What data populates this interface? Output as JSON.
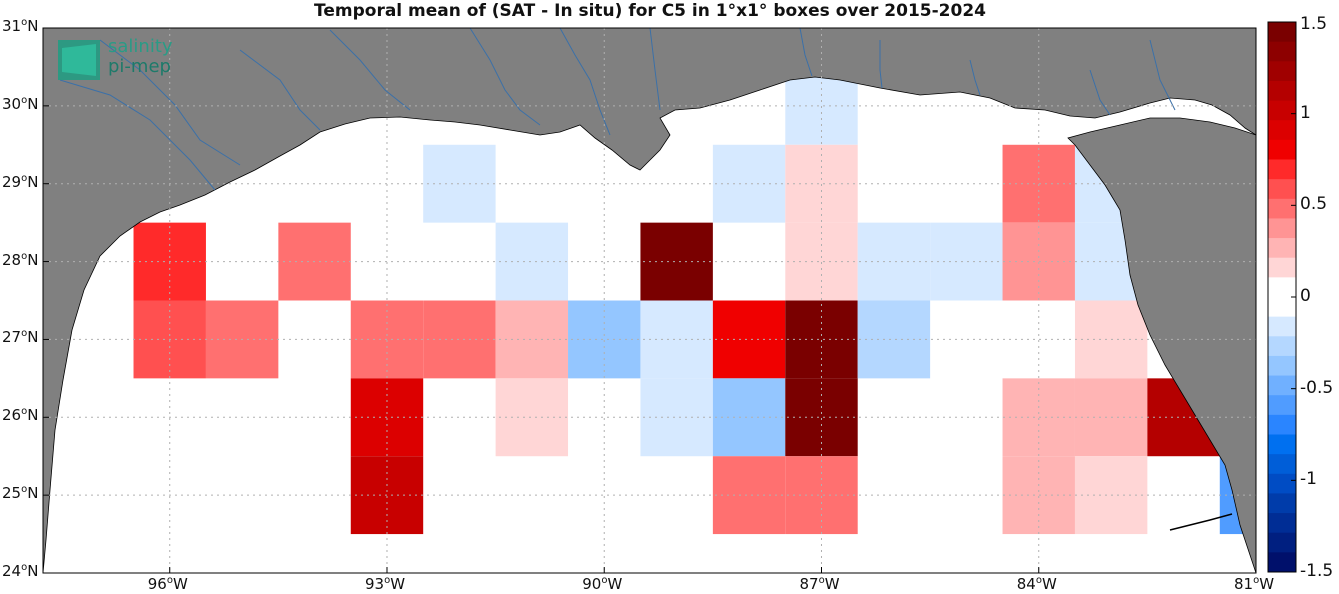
{
  "title": "Temporal mean of (SAT - In situ) for C5 in 1°x1° boxes over 2015-2024",
  "logo": {
    "line1": "salinity",
    "line2": "pi-mep"
  },
  "lon_ticks": [
    {
      "deg": "96",
      "hemi": "W"
    },
    {
      "deg": "93",
      "hemi": "W"
    },
    {
      "deg": "90",
      "hemi": "W"
    },
    {
      "deg": "87",
      "hemi": "W"
    },
    {
      "deg": "84",
      "hemi": "W"
    },
    {
      "deg": "81",
      "hemi": "W"
    }
  ],
  "lat_ticks": [
    {
      "deg": "31",
      "hemi": "N"
    },
    {
      "deg": "30",
      "hemi": "N"
    },
    {
      "deg": "29",
      "hemi": "N"
    },
    {
      "deg": "28",
      "hemi": "N"
    },
    {
      "deg": "27",
      "hemi": "N"
    },
    {
      "deg": "26",
      "hemi": "N"
    },
    {
      "deg": "25",
      "hemi": "N"
    },
    {
      "deg": "24",
      "hemi": "N"
    }
  ],
  "colorbar": {
    "tick_labels": [
      "1.5",
      "1",
      "0.5",
      "0",
      "-0.5",
      "-1",
      "-1.5"
    ],
    "colors": [
      "#7a0000",
      "#8d0000",
      "#a00000",
      "#b40000",
      "#c80000",
      "#dc0000",
      "#f00000",
      "#ff2a2a",
      "#ff5050",
      "#ff7070",
      "#ff9494",
      "#ffb4b4",
      "#ffd6d6",
      "#ffffff",
      "#ffffff",
      "#d6e9ff",
      "#b4d7ff",
      "#94c6ff",
      "#70b0ff",
      "#509cff",
      "#2a85ff",
      "#0070f0",
      "#005ed8",
      "#004cc4",
      "#003caa",
      "#002d95",
      "#001f80",
      "#00106b"
    ]
  },
  "chart_data": {
    "type": "heatmap",
    "title": "Temporal mean of (SAT - In situ) for C5 in 1°x1° boxes over 2015-2024",
    "xlim": [
      -97.75,
      -81
    ],
    "ylim": [
      24,
      31
    ],
    "value_range": [
      -1.5,
      1.5
    ],
    "grid": true,
    "cells": [
      {
        "lon": -96,
        "lat": 28,
        "value": 0.75
      },
      {
        "lon": -94,
        "lat": 28,
        "value": 0.45
      },
      {
        "lon": -92,
        "lat": 29,
        "value": -0.15
      },
      {
        "lon": -91,
        "lat": 28,
        "value": -0.15
      },
      {
        "lon": -89,
        "lat": 28,
        "value": 1.5
      },
      {
        "lon": -88,
        "lat": 29,
        "value": -0.15
      },
      {
        "lon": -87,
        "lat": 30,
        "value": -0.15
      },
      {
        "lon": -87,
        "lat": 29,
        "value": 0.2
      },
      {
        "lon": -87,
        "lat": 28,
        "value": 0.2
      },
      {
        "lon": -86,
        "lat": 28,
        "value": -0.15
      },
      {
        "lon": -85,
        "lat": 28,
        "value": -0.15
      },
      {
        "lon": -84,
        "lat": 29,
        "value": 0.5
      },
      {
        "lon": -84,
        "lat": 28,
        "value": 0.35
      },
      {
        "lon": -83,
        "lat": 29,
        "value": -0.15
      },
      {
        "lon": -83,
        "lat": 28,
        "value": -0.15
      },
      {
        "lon": -96,
        "lat": 27,
        "value": 0.55
      },
      {
        "lon": -95,
        "lat": 27,
        "value": 0.45
      },
      {
        "lon": -93,
        "lat": 27,
        "value": 0.45
      },
      {
        "lon": -92,
        "lat": 27,
        "value": 0.45
      },
      {
        "lon": -91,
        "lat": 27,
        "value": 0.3
      },
      {
        "lon": -90,
        "lat": 27,
        "value": -0.4
      },
      {
        "lon": -89,
        "lat": 27,
        "value": -0.15
      },
      {
        "lon": -88,
        "lat": 27,
        "value": 0.8
      },
      {
        "lon": -87,
        "lat": 27,
        "value": 1.5
      },
      {
        "lon": -86,
        "lat": 27,
        "value": -0.25
      },
      {
        "lon": -83,
        "lat": 27,
        "value": 0.2
      },
      {
        "lon": -93,
        "lat": 26,
        "value": 0.9
      },
      {
        "lon": -91,
        "lat": 26,
        "value": 0.2
      },
      {
        "lon": -89,
        "lat": 26,
        "value": -0.15
      },
      {
        "lon": -88,
        "lat": 26,
        "value": -0.4
      },
      {
        "lon": -87,
        "lat": 26,
        "value": 1.5
      },
      {
        "lon": -84,
        "lat": 26,
        "value": 0.3
      },
      {
        "lon": -83,
        "lat": 26,
        "value": 0.3
      },
      {
        "lon": -82,
        "lat": 26,
        "value": 1.15
      },
      {
        "lon": -93,
        "lat": 25,
        "value": 1.0
      },
      {
        "lon": -88,
        "lat": 25,
        "value": 0.45
      },
      {
        "lon": -87,
        "lat": 25,
        "value": 0.45
      },
      {
        "lon": -84,
        "lat": 25,
        "value": 0.3
      },
      {
        "lon": -83,
        "lat": 25,
        "value": 0.2
      },
      {
        "lon": -81,
        "lat": 25,
        "value": -0.55
      }
    ]
  }
}
